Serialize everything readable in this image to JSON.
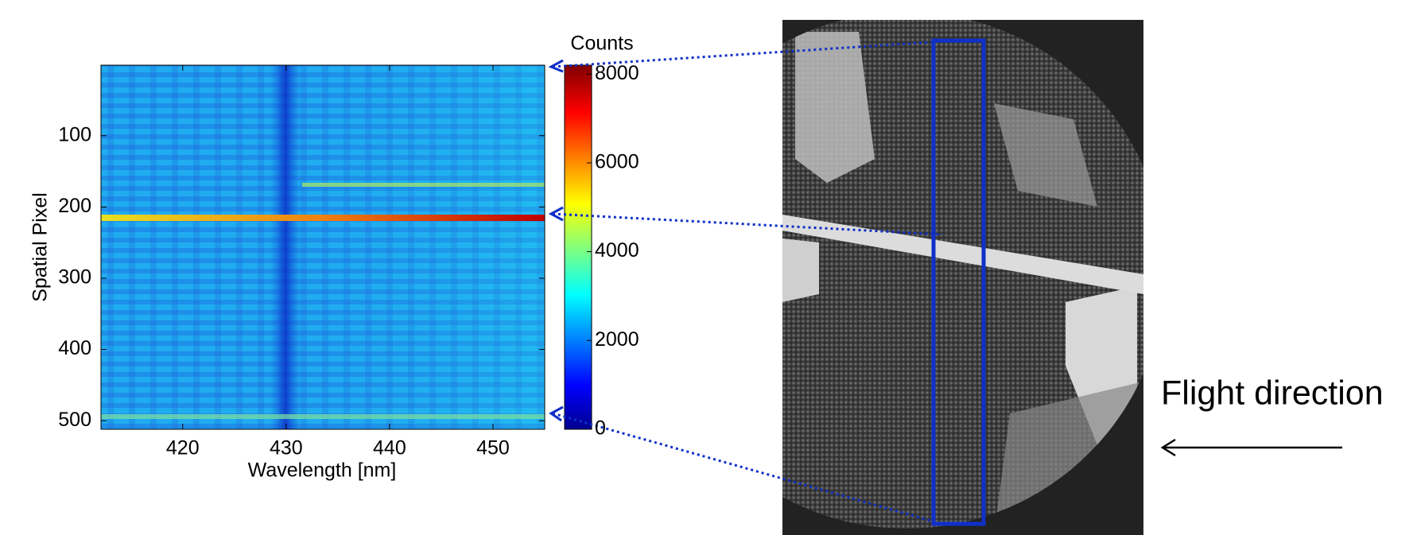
{
  "chart_data": {
    "type": "heatmap",
    "xlabel": "Wavelength [nm]",
    "ylabel": "Spatial Pixel",
    "xlim": [
      412.1,
      455
    ],
    "ylim": [
      1,
      512
    ],
    "y_reversed": true,
    "xticks": [
      420,
      430,
      440,
      450
    ],
    "yticks": [
      100,
      200,
      300,
      400,
      500
    ],
    "colorbar": {
      "label": "Counts",
      "lim": [
        0,
        8200
      ],
      "ticks": [
        0,
        2000,
        4000,
        6000,
        8000
      ],
      "colormap": "jet"
    },
    "annotation": "Flight direction"
  }
}
